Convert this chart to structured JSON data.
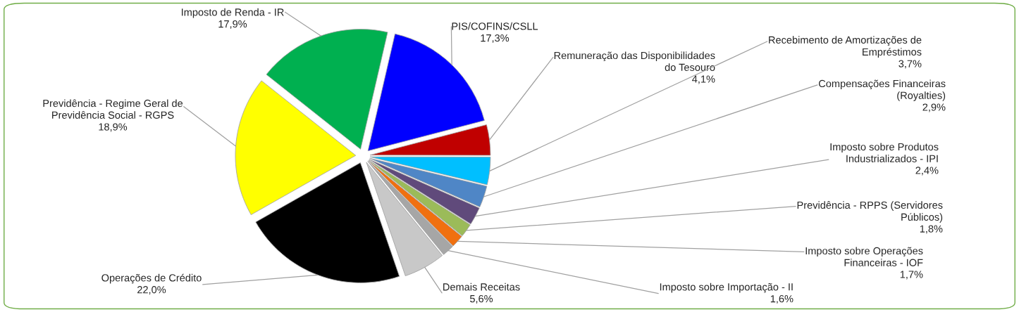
{
  "chart_data": {
    "type": "pie",
    "categories": [
      "PIS/COFINS/CSLL",
      "Remuneração das Disponibilidades\ndo Tesouro",
      "Recebimento de Amortizações de\nEmpréstimos",
      "Compensações Financeiras\n(Royalties)",
      "Imposto sobre Produtos\nIndustrializados - IPI",
      "Previdência - RPPS (Servidores\nPúblicos)",
      "Imposto sobre Operações\nFinanceiras - IOF",
      "Imposto sobre Importação - II",
      "Demais Receitas",
      "Operações de Crédito",
      "Previdência - Regime Geral de\nPrevidência Social - RGPS",
      "Imposto de Renda - IR"
    ],
    "values": [
      17.3,
      4.1,
      3.7,
      2.9,
      2.4,
      1.8,
      1.7,
      1.6,
      5.6,
      22.0,
      18.9,
      17.9
    ],
    "value_labels": [
      "17,3%",
      "4,1%",
      "3,7%",
      "2,9%",
      "2,4%",
      "1,8%",
      "1,7%",
      "1,6%",
      "5,6%",
      "22,0%",
      "18,9%",
      "17,9%"
    ],
    "colors": [
      "#0000ff",
      "#c00000",
      "#00bfff",
      "#4f86c6",
      "#604a7b",
      "#9bbb59",
      "#f07010",
      "#a6a6a6",
      "#c8c8c8",
      "#000000",
      "#ffff00",
      "#00b050"
    ],
    "legend": false
  }
}
